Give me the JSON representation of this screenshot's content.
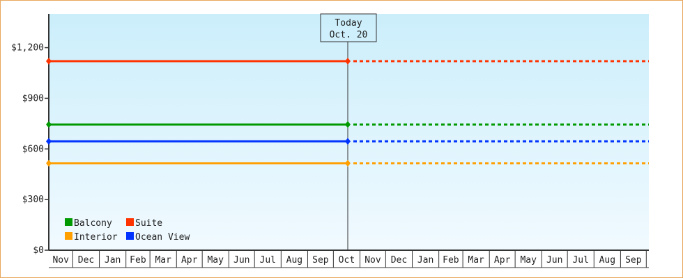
{
  "chart_data": {
    "type": "line",
    "title": "",
    "xlabel": "",
    "ylabel": "",
    "ylim": [
      0,
      1400
    ],
    "y_ticks": [
      "$0",
      "$300",
      "$600",
      "$900",
      "$1,200"
    ],
    "y_tick_values": [
      0,
      300,
      600,
      900,
      1200
    ],
    "x_tick_labels": [
      "Nov",
      "Dec",
      "Jan",
      "Feb",
      "Mar",
      "Apr",
      "May",
      "Jun",
      "Jul",
      "Aug",
      "Sep",
      "Oct",
      "Nov",
      "Dec",
      "Jan",
      "Feb",
      "Mar",
      "Apr",
      "May",
      "Jun",
      "Jul",
      "Aug",
      "Sep"
    ],
    "grid": false,
    "legend_placement": "bottom-left",
    "today_marker": {
      "line1": "Today",
      "line2": "Oct. 20"
    },
    "history_style": "solid",
    "projection_style": "dotted",
    "series": [
      {
        "name": "Balcony",
        "color": "#009900",
        "value": 745
      },
      {
        "name": "Suite",
        "color": "#ff3300",
        "value": 1120
      },
      {
        "name": "Interior",
        "color": "#ffa000",
        "value": 515
      },
      {
        "name": "Ocean View",
        "color": "#0033ff",
        "value": 645
      }
    ]
  }
}
